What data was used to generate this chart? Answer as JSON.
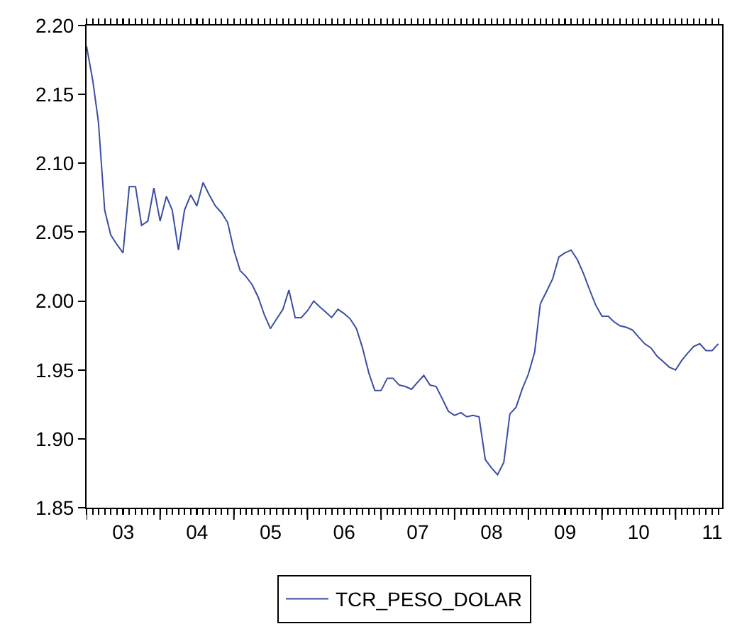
{
  "chart_data": {
    "type": "line",
    "x": [
      "2003-01",
      "2003-02",
      "2003-03",
      "2003-04",
      "2003-05",
      "2003-06",
      "2003-07",
      "2003-08",
      "2003-09",
      "2003-10",
      "2003-11",
      "2003-12",
      "2004-01",
      "2004-02",
      "2004-03",
      "2004-04",
      "2004-05",
      "2004-06",
      "2004-07",
      "2004-08",
      "2004-09",
      "2004-10",
      "2004-11",
      "2004-12",
      "2005-01",
      "2005-02",
      "2005-03",
      "2005-04",
      "2005-05",
      "2005-06",
      "2005-07",
      "2005-08",
      "2005-09",
      "2005-10",
      "2005-11",
      "2005-12",
      "2006-01",
      "2006-02",
      "2006-03",
      "2006-04",
      "2006-05",
      "2006-06",
      "2006-07",
      "2006-08",
      "2006-09",
      "2006-10",
      "2006-11",
      "2006-12",
      "2007-01",
      "2007-02",
      "2007-03",
      "2007-04",
      "2007-05",
      "2007-06",
      "2007-07",
      "2007-08",
      "2007-09",
      "2007-10",
      "2007-11",
      "2007-12",
      "2008-01",
      "2008-02",
      "2008-03",
      "2008-04",
      "2008-05",
      "2008-06",
      "2008-07",
      "2008-08",
      "2008-09",
      "2008-10",
      "2008-11",
      "2008-12",
      "2009-01",
      "2009-02",
      "2009-03",
      "2009-04",
      "2009-05",
      "2009-06",
      "2009-07",
      "2009-08",
      "2009-09",
      "2009-10",
      "2009-11",
      "2009-12",
      "2010-01",
      "2010-02",
      "2010-03",
      "2010-04",
      "2010-05",
      "2010-06",
      "2010-07",
      "2010-08",
      "2010-09",
      "2010-10",
      "2010-11",
      "2010-12",
      "2011-01",
      "2011-02",
      "2011-03",
      "2011-04",
      "2011-05",
      "2011-06",
      "2011-07",
      "2011-08"
    ],
    "series": [
      {
        "name": "TCR_PESO_DOLAR",
        "color": "#3a4ea2",
        "values": [
          2.185,
          2.16,
          2.13,
          2.066,
          2.048,
          2.041,
          2.035,
          2.083,
          2.083,
          2.055,
          2.058,
          2.082,
          2.058,
          2.076,
          2.066,
          2.037,
          2.066,
          2.077,
          2.069,
          2.086,
          2.077,
          2.069,
          2.064,
          2.057,
          2.037,
          2.022,
          2.018,
          2.012,
          2.003,
          1.99,
          1.98,
          1.987,
          1.994,
          2.008,
          1.988,
          1.988,
          1.993,
          2.0,
          1.996,
          1.992,
          1.988,
          1.994,
          1.991,
          1.987,
          1.98,
          1.966,
          1.948,
          1.935,
          1.935,
          1.944,
          1.944,
          1.939,
          1.938,
          1.936,
          1.941,
          1.946,
          1.939,
          1.938,
          1.929,
          1.92,
          1.917,
          1.919,
          1.916,
          1.917,
          1.916,
          1.885,
          1.879,
          1.874,
          1.883,
          1.918,
          1.923,
          1.936,
          1.947,
          1.963,
          1.998,
          2.007,
          2.016,
          2.032,
          2.035,
          2.037,
          2.03,
          2.02,
          2.008,
          1.997,
          1.989,
          1.989,
          1.985,
          1.982,
          1.981,
          1.979,
          1.974,
          1.969,
          1.966,
          1.96,
          1.956,
          1.952,
          1.95,
          1.957,
          1.962,
          1.967,
          1.969,
          1.964,
          1.964,
          1.969
        ]
      }
    ],
    "xlim": [
      "2003-01-01",
      "2011-08-20"
    ],
    "xticks": [
      {
        "value": "2003-01-01",
        "label": null
      },
      {
        "value": "2003-07-02",
        "label": "03"
      },
      {
        "value": "2004-01-01",
        "label": null
      },
      {
        "value": "2004-07-02",
        "label": "04"
      },
      {
        "value": "2005-01-01",
        "label": null
      },
      {
        "value": "2005-07-02",
        "label": "05"
      },
      {
        "value": "2006-01-01",
        "label": null
      },
      {
        "value": "2006-07-02",
        "label": "06"
      },
      {
        "value": "2007-01-01",
        "label": null
      },
      {
        "value": "2007-07-02",
        "label": "07"
      },
      {
        "value": "2008-01-01",
        "label": null
      },
      {
        "value": "2008-07-02",
        "label": "08"
      },
      {
        "value": "2009-01-01",
        "label": null
      },
      {
        "value": "2009-07-02",
        "label": "09"
      },
      {
        "value": "2010-01-01",
        "label": null
      },
      {
        "value": "2010-07-02",
        "label": "10"
      },
      {
        "value": "2011-01-01",
        "label": null
      },
      {
        "value": "2011-07-02",
        "label": "11"
      }
    ],
    "ylim": [
      1.85,
      2.2
    ],
    "yticks": [
      1.85,
      {
        "value": 1.9,
        "label": "1.90"
      },
      1.95,
      {
        "value": 2.0,
        "label": "2.00"
      },
      2.05,
      {
        "value": 2.1,
        "label": "2.10"
      },
      2.15,
      {
        "value": 2.2,
        "label": "2.20"
      }
    ],
    "grid": false,
    "legend": "bottom",
    "marker": "none",
    "line_style": "solid"
  }
}
